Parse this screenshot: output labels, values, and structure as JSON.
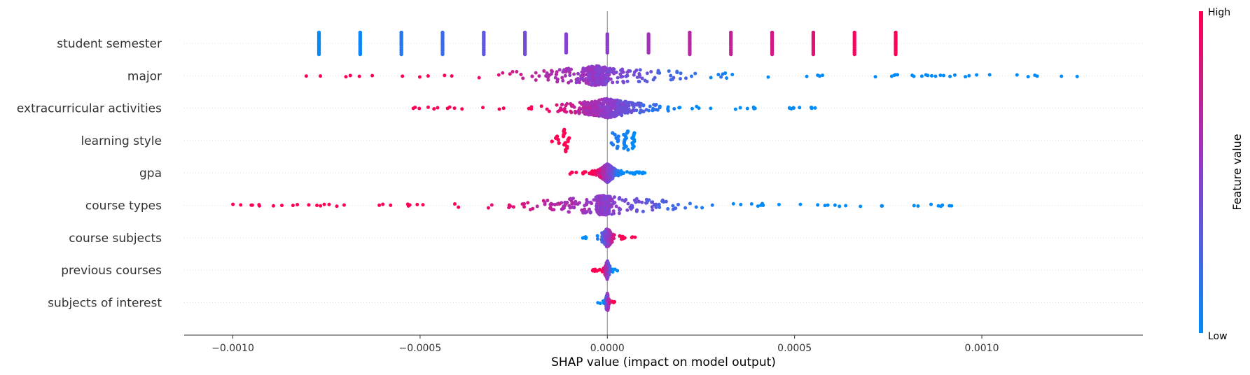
{
  "chart_data": {
    "type": "scatter",
    "subtype": "shap-beeswarm",
    "title": "",
    "xlabel": "SHAP value (impact on model output)",
    "ylabel": "",
    "xlim": [
      -0.00113,
      0.00143
    ],
    "xticks": [
      -0.001,
      -0.0005,
      0.0,
      0.0005,
      0.001
    ],
    "xtick_labels": [
      "−0.0010",
      "−0.0005",
      "0.0000",
      "0.0005",
      "0.0010"
    ],
    "zero_line": true,
    "grid": false,
    "colormap": {
      "low": "#008bfb",
      "mid": "#8f3ccb",
      "high": "#ff0052"
    },
    "colorbar": {
      "title": "Feature value",
      "high_label": "High",
      "low_label": "Low"
    },
    "features": [
      {
        "name": "student semester",
        "clusters": [
          {
            "x": -0.00077,
            "c": 0.0,
            "n": 14,
            "w": 0.0
          },
          {
            "x": -0.00066,
            "c": 0.04,
            "n": 14,
            "w": 0.0
          },
          {
            "x": -0.00055,
            "c": 0.12,
            "n": 14,
            "w": 0.0
          },
          {
            "x": -0.00044,
            "c": 0.2,
            "n": 14,
            "w": 0.0
          },
          {
            "x": -0.00033,
            "c": 0.32,
            "n": 14,
            "w": 0.0
          },
          {
            "x": -0.00022,
            "c": 0.4,
            "n": 14,
            "w": 0.0
          },
          {
            "x": -0.00011,
            "c": 0.46,
            "n": 12,
            "w": 0.0
          },
          {
            "x": 0.0,
            "c": 0.5,
            "n": 12,
            "w": 0.0
          },
          {
            "x": 0.00011,
            "c": 0.58,
            "n": 12,
            "w": 0.0
          },
          {
            "x": 0.00022,
            "c": 0.66,
            "n": 14,
            "w": 0.0
          },
          {
            "x": 0.00033,
            "c": 0.72,
            "n": 14,
            "w": 0.0
          },
          {
            "x": 0.00044,
            "c": 0.8,
            "n": 14,
            "w": 0.0
          },
          {
            "x": 0.00055,
            "c": 0.86,
            "n": 14,
            "w": 0.0
          },
          {
            "x": 0.00066,
            "c": 0.94,
            "n": 14,
            "w": 0.0
          },
          {
            "x": 0.00077,
            "c": 1.0,
            "n": 14,
            "w": 0.0
          }
        ],
        "spread": {
          "min": -0.00082,
          "max": 0.00132,
          "center": -3e-05,
          "n": 0,
          "lowRight": true
        }
      },
      {
        "name": "major",
        "clusters": [],
        "spread": {
          "min": -0.00082,
          "max": 0.00132,
          "center": -3e-05,
          "n": 420,
          "lowRight": true,
          "peak": 5e-05
        }
      },
      {
        "name": "extracurricular activities",
        "clusters": [],
        "spread": {
          "min": -0.00053,
          "max": 0.00056,
          "center": 0.0,
          "n": 520,
          "lowRight": true,
          "peak": 0.0001
        }
      },
      {
        "name": "learning style",
        "clusters": [
          {
            "x": -0.00011,
            "c": 1.0,
            "n": 14,
            "w": 8e-06
          },
          {
            "x": -0.00013,
            "c": 1.0,
            "n": 6,
            "w": 2e-05
          },
          {
            "x": 2e-05,
            "c": 0.1,
            "n": 10,
            "w": 1e-05
          },
          {
            "x": 5e-05,
            "c": 0.05,
            "n": 12,
            "w": 6e-06
          },
          {
            "x": 7e-05,
            "c": 0.0,
            "n": 10,
            "w": 4e-06
          }
        ],
        "spread": {
          "min": -0.00016,
          "max": 8e-05,
          "center": 0.0,
          "n": 0,
          "lowRight": true
        }
      },
      {
        "name": "gpa",
        "clusters": [],
        "spread": {
          "min": -0.0001,
          "max": 0.0001,
          "center": 0.0,
          "n": 360,
          "lowRight": true,
          "peak": 5e-05
        }
      },
      {
        "name": "course types",
        "clusters": [],
        "spread": {
          "min": -0.001,
          "max": 0.00098,
          "center": -1e-05,
          "n": 480,
          "lowRight": true,
          "peak": 3e-05
        }
      },
      {
        "name": "course subjects",
        "clusters": [],
        "spread": {
          "min": -8e-05,
          "max": 8e-05,
          "center": 0.0,
          "n": 160,
          "lowRight": false,
          "peak": 2e-05
        }
      },
      {
        "name": "previous courses",
        "clusters": [],
        "spread": {
          "min": -4e-05,
          "max": 3e-05,
          "center": 0.0,
          "n": 120,
          "lowRight": true,
          "peak": 1e-05
        }
      },
      {
        "name": "subjects of interest",
        "clusters": [],
        "spread": {
          "min": -3e-05,
          "max": 2e-05,
          "center": 0.0,
          "n": 110,
          "lowRight": false,
          "peak": 8e-06
        }
      }
    ]
  }
}
